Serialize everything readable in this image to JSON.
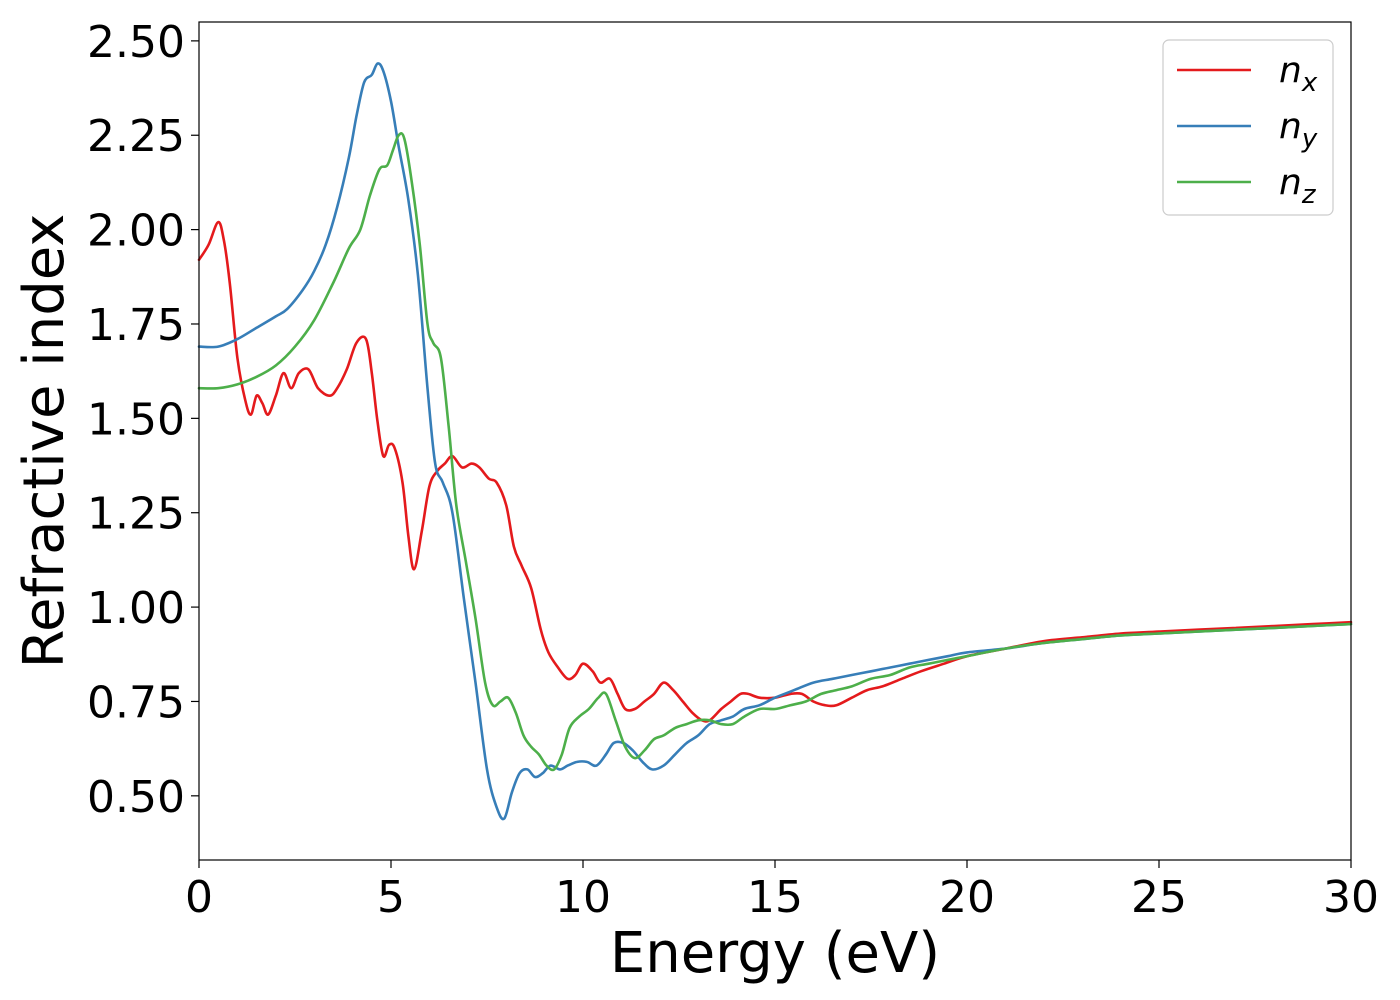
{
  "chart_data": {
    "type": "line",
    "title": "",
    "xlabel": "Energy (eV)",
    "ylabel": "Refractive index",
    "xlim": [
      0,
      30
    ],
    "ylim": [
      0.33,
      2.55
    ],
    "xticks": [
      0,
      5,
      10,
      15,
      20,
      25,
      30
    ],
    "xtick_labels": [
      "0",
      "5",
      "10",
      "15",
      "20",
      "25",
      "30"
    ],
    "yticks": [
      0.5,
      0.75,
      1.0,
      1.25,
      1.5,
      1.75,
      2.0,
      2.25,
      2.5
    ],
    "ytick_labels": [
      "0.50",
      "0.75",
      "1.00",
      "1.25",
      "1.50",
      "1.75",
      "2.00",
      "2.25",
      "2.50"
    ],
    "grid": false,
    "legend_position": "top-right",
    "series": [
      {
        "name": "n",
        "subscript": "x",
        "color": "#e41a1c",
        "x": [
          0,
          0.25,
          0.5,
          0.65,
          0.8,
          1.0,
          1.2,
          1.35,
          1.5,
          1.65,
          1.8,
          2.0,
          2.2,
          2.4,
          2.6,
          2.85,
          3.1,
          3.4,
          3.6,
          3.85,
          4.1,
          4.35,
          4.5,
          4.65,
          4.8,
          4.95,
          5.1,
          5.3,
          5.45,
          5.6,
          5.8,
          6.0,
          6.2,
          6.4,
          6.6,
          6.85,
          7.1,
          7.3,
          7.55,
          7.75,
          8.0,
          8.2,
          8.4,
          8.65,
          8.9,
          9.1,
          9.35,
          9.6,
          9.8,
          10.0,
          10.25,
          10.45,
          10.7,
          10.9,
          11.1,
          11.35,
          11.6,
          11.85,
          12.1,
          12.35,
          12.6,
          12.85,
          13.1,
          13.3,
          13.6,
          13.85,
          14.1,
          14.3,
          14.6,
          15.0,
          15.4,
          15.7,
          16.0,
          16.3,
          16.6,
          17.0,
          17.4,
          17.8,
          18.3,
          18.8,
          19.4,
          20.0,
          21.0,
          22.0,
          23.0,
          24.0,
          25.0,
          26.0,
          27.0,
          28.0,
          29.0,
          30.0
        ],
        "y": [
          1.92,
          1.96,
          2.02,
          1.97,
          1.86,
          1.66,
          1.55,
          1.51,
          1.56,
          1.54,
          1.51,
          1.56,
          1.62,
          1.58,
          1.62,
          1.63,
          1.58,
          1.56,
          1.58,
          1.63,
          1.7,
          1.71,
          1.62,
          1.49,
          1.4,
          1.43,
          1.42,
          1.33,
          1.19,
          1.1,
          1.2,
          1.32,
          1.36,
          1.38,
          1.4,
          1.37,
          1.38,
          1.37,
          1.34,
          1.33,
          1.27,
          1.16,
          1.11,
          1.05,
          0.94,
          0.88,
          0.84,
          0.81,
          0.82,
          0.85,
          0.83,
          0.8,
          0.81,
          0.77,
          0.73,
          0.73,
          0.75,
          0.77,
          0.8,
          0.78,
          0.75,
          0.72,
          0.7,
          0.7,
          0.73,
          0.75,
          0.77,
          0.77,
          0.76,
          0.76,
          0.77,
          0.77,
          0.75,
          0.74,
          0.74,
          0.76,
          0.78,
          0.79,
          0.81,
          0.83,
          0.85,
          0.87,
          0.89,
          0.91,
          0.92,
          0.93,
          0.935,
          0.94,
          0.945,
          0.95,
          0.955,
          0.96
        ]
      },
      {
        "name": "n",
        "subscript": "y",
        "color": "#377eb8",
        "x": [
          0,
          0.5,
          1.0,
          1.5,
          2.0,
          2.3,
          2.7,
          3.0,
          3.3,
          3.6,
          3.9,
          4.1,
          4.3,
          4.5,
          4.65,
          4.8,
          5.0,
          5.2,
          5.45,
          5.7,
          5.95,
          6.15,
          6.35,
          6.6,
          6.9,
          7.2,
          7.5,
          7.75,
          7.95,
          8.15,
          8.35,
          8.55,
          8.75,
          8.95,
          9.15,
          9.4,
          9.6,
          9.85,
          10.1,
          10.35,
          10.6,
          10.8,
          11.05,
          11.3,
          11.55,
          11.8,
          12.1,
          12.4,
          12.7,
          13.0,
          13.3,
          13.6,
          13.9,
          14.2,
          14.6,
          15.0,
          15.5,
          16.0,
          16.5,
          17.0,
          17.5,
          18.0,
          18.5,
          19.0,
          19.5,
          20.0,
          21.0,
          22.0,
          23.0,
          24.0,
          25.0,
          26.0,
          27.0,
          28.0,
          29.0,
          30.0
        ],
        "y": [
          1.69,
          1.69,
          1.71,
          1.74,
          1.77,
          1.79,
          1.84,
          1.89,
          1.96,
          2.06,
          2.19,
          2.3,
          2.39,
          2.41,
          2.44,
          2.42,
          2.34,
          2.22,
          2.08,
          1.88,
          1.58,
          1.38,
          1.33,
          1.25,
          1.02,
          0.8,
          0.57,
          0.47,
          0.44,
          0.51,
          0.56,
          0.57,
          0.55,
          0.56,
          0.58,
          0.57,
          0.58,
          0.59,
          0.59,
          0.58,
          0.61,
          0.64,
          0.64,
          0.62,
          0.59,
          0.57,
          0.58,
          0.61,
          0.64,
          0.66,
          0.69,
          0.7,
          0.71,
          0.73,
          0.74,
          0.76,
          0.78,
          0.8,
          0.81,
          0.82,
          0.83,
          0.84,
          0.85,
          0.86,
          0.87,
          0.88,
          0.89,
          0.905,
          0.915,
          0.925,
          0.93,
          0.935,
          0.94,
          0.945,
          0.95,
          0.955
        ]
      },
      {
        "name": "n",
        "subscript": "z",
        "color": "#4daf4a",
        "x": [
          0,
          0.5,
          1.0,
          1.5,
          2.0,
          2.5,
          3.0,
          3.5,
          3.9,
          4.2,
          4.45,
          4.7,
          4.9,
          5.05,
          5.2,
          5.35,
          5.55,
          5.75,
          5.95,
          6.1,
          6.3,
          6.5,
          6.7,
          6.95,
          7.2,
          7.45,
          7.65,
          7.85,
          8.05,
          8.25,
          8.45,
          8.65,
          8.85,
          9.05,
          9.25,
          9.45,
          9.65,
          9.9,
          10.15,
          10.4,
          10.6,
          10.85,
          11.1,
          11.35,
          11.6,
          11.85,
          12.1,
          12.4,
          12.7,
          13.0,
          13.3,
          13.6,
          13.9,
          14.2,
          14.6,
          15.0,
          15.4,
          15.8,
          16.2,
          16.6,
          17.0,
          17.5,
          18.0,
          18.5,
          19.0,
          19.5,
          20.0,
          21.0,
          22.0,
          23.0,
          24.0,
          25.0,
          26.0,
          27.0,
          28.0,
          29.0,
          30.0
        ],
        "y": [
          1.58,
          1.58,
          1.59,
          1.61,
          1.64,
          1.69,
          1.76,
          1.86,
          1.95,
          2.0,
          2.09,
          2.16,
          2.17,
          2.21,
          2.25,
          2.24,
          2.12,
          1.96,
          1.75,
          1.7,
          1.66,
          1.48,
          1.27,
          1.12,
          0.97,
          0.8,
          0.74,
          0.75,
          0.76,
          0.72,
          0.66,
          0.63,
          0.61,
          0.58,
          0.57,
          0.61,
          0.68,
          0.71,
          0.73,
          0.76,
          0.77,
          0.7,
          0.63,
          0.6,
          0.62,
          0.65,
          0.66,
          0.68,
          0.69,
          0.7,
          0.7,
          0.69,
          0.69,
          0.71,
          0.73,
          0.73,
          0.74,
          0.75,
          0.77,
          0.78,
          0.79,
          0.81,
          0.82,
          0.84,
          0.85,
          0.86,
          0.87,
          0.89,
          0.905,
          0.915,
          0.925,
          0.93,
          0.935,
          0.94,
          0.945,
          0.95,
          0.955
        ]
      }
    ]
  }
}
